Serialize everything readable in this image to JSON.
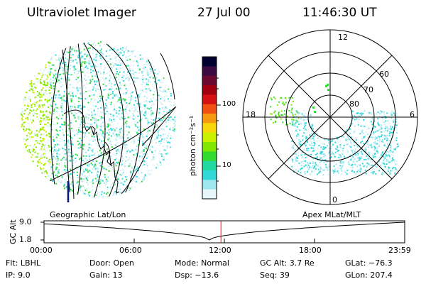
{
  "header": {
    "instrument": "Ultraviolet Imager",
    "date": "27 Jul 00",
    "time": "11:46:30 UT"
  },
  "colorbar": {
    "unit_label": "photon cm⁻²s⁻¹",
    "ticks": [
      "100",
      "10"
    ],
    "colors": [
      "#000033",
      "#3a0a40",
      "#6a0a30",
      "#a00010",
      "#d41010",
      "#f05010",
      "#f59a10",
      "#f8d80a",
      "#c8f000",
      "#80e800",
      "#30dc30",
      "#20d8a0",
      "#30d8d8",
      "#a0e8f0",
      "#e6f6fa"
    ]
  },
  "polar_plot": {
    "mlt_labels": [
      "12",
      "18",
      "6",
      "0"
    ],
    "lat_labels": [
      "60",
      "70",
      "80"
    ]
  },
  "timeline": {
    "left_title": "Geographic Lat/Lon",
    "right_title": "Apex MLat/MLT",
    "axis_label": "GC Alt",
    "y_ticks": [
      "9.0",
      "1.8"
    ],
    "x_ticks": [
      "00:00",
      "06:00",
      "12:00",
      "18:00",
      "23:59"
    ],
    "current_time_hours": 11.775,
    "marker_color": "#ff0000"
  },
  "info": {
    "flt": "Flt: LBHL",
    "ip": "IP:  9.0",
    "door": "Door: Open",
    "gain": "Gain: 13",
    "mode": "Mode: Normal",
    "dsp": "Dsp:  −13.6",
    "gc_alt": "GC Alt: 3.7 Re",
    "seq": "Seq: 39",
    "glat": "GLat: −76.3",
    "glon": "GLon: 207.4"
  }
}
